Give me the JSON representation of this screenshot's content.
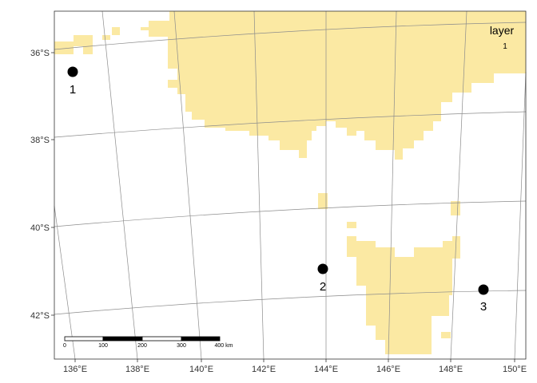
{
  "map": {
    "land_color": "#fbe9a3",
    "grid_color": "#8c8c8c",
    "point_color": "#000000",
    "lat_labels": [
      "36°S",
      "38°S",
      "40°S",
      "42°S"
    ],
    "lon_labels": [
      "136°E",
      "138°E",
      "140°E",
      "142°E",
      "144°E",
      "146°E",
      "148°E",
      "150°E"
    ],
    "legend": {
      "title": "layer",
      "value": "1"
    },
    "points": [
      {
        "label": "1",
        "lon": 136.0,
        "lat": -36.5
      },
      {
        "label": "2",
        "lon": 143.9,
        "lat": -41.0
      },
      {
        "label": "3",
        "lon": 149.0,
        "lat": -41.5
      }
    ],
    "scalebar": {
      "labels": [
        "0",
        "100",
        "200",
        "300",
        "400 km"
      ]
    }
  }
}
